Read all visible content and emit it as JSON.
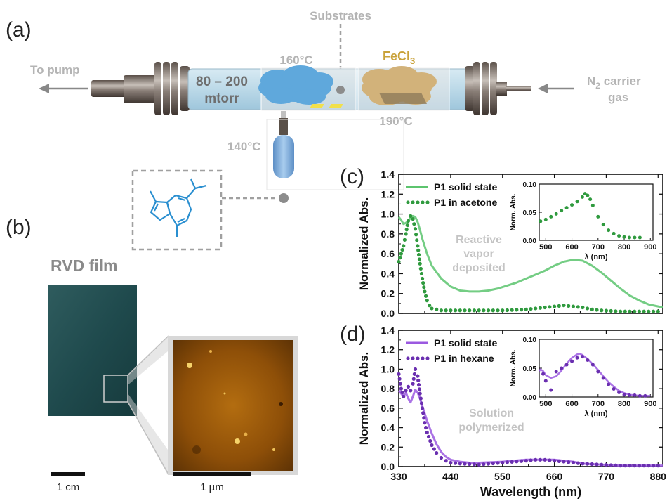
{
  "panels": {
    "a": "(a)",
    "b": "(b)",
    "c": "(c)",
    "d": "(d)"
  },
  "schematic": {
    "substrates": "Substrates",
    "to_pump": "To pump",
    "pressure_line1": "80 – 200",
    "pressure_line2": "mtorr",
    "temp_160": "160°C",
    "fecl3_main": "FeCl",
    "fecl3_sub": "3",
    "temp_190": "190°C",
    "n2_main": "N",
    "n2_sub": "2",
    "n2_rest": " carrier",
    "n2_line2": "gas",
    "temp_140": "140°C",
    "colors": {
      "label_grey": "#b4b4b4",
      "fecl3": "#c9a23a",
      "molecule": "#2a8fd0",
      "cloud": "#5fa8dc"
    }
  },
  "film": {
    "title": "RVD film",
    "scale_left": "1 cm",
    "scale_right": "1 µm"
  },
  "chart_data": [
    {
      "panel": "c",
      "type": "line",
      "ylabel": "Normalized Abs.",
      "xlabel": "",
      "xlim": [
        330,
        890
      ],
      "ylim": [
        0,
        1.4
      ],
      "yticks": [
        "0.0",
        "0.2",
        "0.4",
        "0.6",
        "0.8",
        "1.0",
        "1.2",
        "1.4"
      ],
      "annotation": [
        "Reactive",
        "vapor",
        "deposited"
      ],
      "color": "#5cc46e",
      "series": [
        {
          "name": "P1 solid state",
          "style": "solid",
          "x": [
            330,
            335,
            340,
            345,
            350,
            355,
            360,
            365,
            370,
            375,
            380,
            390,
            400,
            420,
            440,
            460,
            480,
            500,
            520,
            540,
            560,
            580,
            600,
            620,
            640,
            660,
            680,
            700,
            720,
            740,
            760,
            780,
            800,
            820,
            840,
            860,
            890
          ],
          "y": [
            0.97,
            0.94,
            0.9,
            0.91,
            0.93,
            0.96,
            0.98,
            0.97,
            0.92,
            0.84,
            0.75,
            0.6,
            0.48,
            0.35,
            0.27,
            0.23,
            0.22,
            0.22,
            0.23,
            0.25,
            0.28,
            0.31,
            0.35,
            0.39,
            0.43,
            0.48,
            0.52,
            0.54,
            0.53,
            0.48,
            0.41,
            0.33,
            0.25,
            0.18,
            0.13,
            0.09,
            0.06
          ]
        },
        {
          "name": "P1 in acetone",
          "style": "dotted",
          "x": [
            330,
            335,
            340,
            345,
            350,
            355,
            360,
            365,
            370,
            375,
            380,
            385,
            390,
            395,
            400,
            410,
            420,
            430,
            440,
            460,
            500,
            550,
            600,
            640,
            660,
            680,
            700,
            720,
            740,
            760,
            800,
            850,
            890
          ],
          "y": [
            0.52,
            0.6,
            0.68,
            0.8,
            0.93,
            0.98,
            0.95,
            0.85,
            0.68,
            0.5,
            0.35,
            0.22,
            0.13,
            0.08,
            0.05,
            0.04,
            0.03,
            0.03,
            0.03,
            0.03,
            0.03,
            0.03,
            0.04,
            0.06,
            0.07,
            0.08,
            0.07,
            0.06,
            0.04,
            0.03,
            0.02,
            0.02,
            0.02
          ]
        }
      ],
      "inset": {
        "ylabel": "Norm. Abs.",
        "xlabel": "λ (nm)",
        "xlim": [
          475,
          910
        ],
        "ylim": [
          0,
          0.1
        ],
        "xticks": [
          "500",
          "600",
          "700",
          "800",
          "900"
        ],
        "yticks": [
          "0.00",
          "0.05",
          "0.10"
        ],
        "series": [
          {
            "name": "P1 in acetone",
            "style": "dotted",
            "x": [
              480,
              500,
              520,
              540,
              560,
              580,
              600,
              620,
              640,
              650,
              660,
              670,
              680,
              700,
              720,
              740,
              760,
              780,
              800,
              820,
              840,
              860
            ],
            "y": [
              0.034,
              0.037,
              0.042,
              0.047,
              0.053,
              0.058,
              0.063,
              0.069,
              0.077,
              0.083,
              0.08,
              0.073,
              0.062,
              0.042,
              0.028,
              0.018,
              0.012,
              0.008,
              0.006,
              0.005,
              0.005,
              0.005
            ]
          }
        ]
      }
    },
    {
      "panel": "d",
      "type": "line",
      "ylabel": "Normalized Abs.",
      "xlabel": "Wavelength (nm)",
      "xlim": [
        330,
        890
      ],
      "ylim": [
        0,
        1.4
      ],
      "xticks": [
        "330",
        "440",
        "550",
        "660",
        "770",
        "880"
      ],
      "yticks": [
        "0.0",
        "0.2",
        "0.4",
        "0.6",
        "0.8",
        "1.0",
        "1.2",
        "1.4"
      ],
      "annotation": [
        "Solution",
        "polymerized"
      ],
      "color": "#9b59e0",
      "series": [
        {
          "name": "P1 solid state",
          "style": "solid",
          "x": [
            330,
            335,
            340,
            345,
            350,
            355,
            360,
            365,
            370,
            375,
            380,
            390,
            400,
            410,
            420,
            430,
            440,
            460,
            480,
            500,
            550,
            600,
            620,
            640,
            660,
            680,
            700,
            720,
            760,
            800,
            850,
            890
          ],
          "y": [
            0.78,
            0.75,
            0.72,
            0.76,
            0.7,
            0.66,
            0.72,
            0.79,
            0.76,
            0.7,
            0.62,
            0.47,
            0.34,
            0.23,
            0.15,
            0.1,
            0.07,
            0.05,
            0.04,
            0.04,
            0.05,
            0.07,
            0.07,
            0.07,
            0.07,
            0.06,
            0.05,
            0.03,
            0.02,
            0.01,
            0.01,
            0.01
          ]
        },
        {
          "name": "P1 in hexane",
          "style": "dotted",
          "x": [
            330,
            335,
            340,
            345,
            350,
            355,
            360,
            365,
            370,
            375,
            380,
            385,
            390,
            400,
            410,
            420,
            430,
            440,
            460,
            500,
            550,
            600,
            620,
            640,
            660,
            680,
            700,
            720,
            760,
            800,
            850,
            890
          ],
          "y": [
            0.95,
            0.8,
            0.72,
            0.78,
            0.82,
            0.78,
            0.85,
            1.0,
            0.93,
            0.75,
            0.6,
            0.45,
            0.35,
            0.22,
            0.14,
            0.09,
            0.06,
            0.04,
            0.03,
            0.02,
            0.04,
            0.06,
            0.07,
            0.07,
            0.06,
            0.05,
            0.04,
            0.03,
            0.02,
            0.01,
            0.01,
            0.01
          ]
        }
      ],
      "inset": {
        "ylabel": "Norm. Abs.",
        "xlabel": "λ (nm)",
        "xlim": [
          475,
          910
        ],
        "ylim": [
          0,
          0.1
        ],
        "xticks": [
          "500",
          "600",
          "700",
          "800",
          "900"
        ],
        "yticks": [
          "0.00",
          "0.05",
          "0.10"
        ],
        "series": [
          {
            "name": "P1 solid state",
            "style": "solid",
            "x": [
              475,
              480,
              490,
              500,
              520,
              540,
              560,
              580,
              600,
              620,
              630,
              640,
              660,
              680,
              700,
              720,
              740,
              760,
              780,
              800,
              820,
              840,
              860,
              880,
              900
            ],
            "y": [
              0.045,
              0.048,
              0.045,
              0.038,
              0.033,
              0.036,
              0.046,
              0.058,
              0.068,
              0.074,
              0.075,
              0.073,
              0.066,
              0.057,
              0.047,
              0.036,
              0.026,
              0.018,
              0.011,
              0.007,
              0.004,
              0.003,
              0.002,
              0.002,
              0.002
            ]
          },
          {
            "name": "P1 in hexane",
            "style": "dotted",
            "x": [
              490,
              500,
              520,
              540,
              560,
              580,
              600,
              620,
              640,
              660,
              680,
              700,
              720,
              740,
              760,
              780,
              800,
              820,
              840,
              860,
              880
            ],
            "y": [
              0.04,
              0.028,
              0.012,
              0.044,
              0.05,
              0.056,
              0.062,
              0.068,
              0.07,
              0.064,
              0.056,
              0.044,
              0.033,
              0.022,
              0.014,
              0.008,
              0.004,
              0.003,
              0.003,
              0.002,
              0.002
            ]
          }
        ]
      }
    }
  ]
}
